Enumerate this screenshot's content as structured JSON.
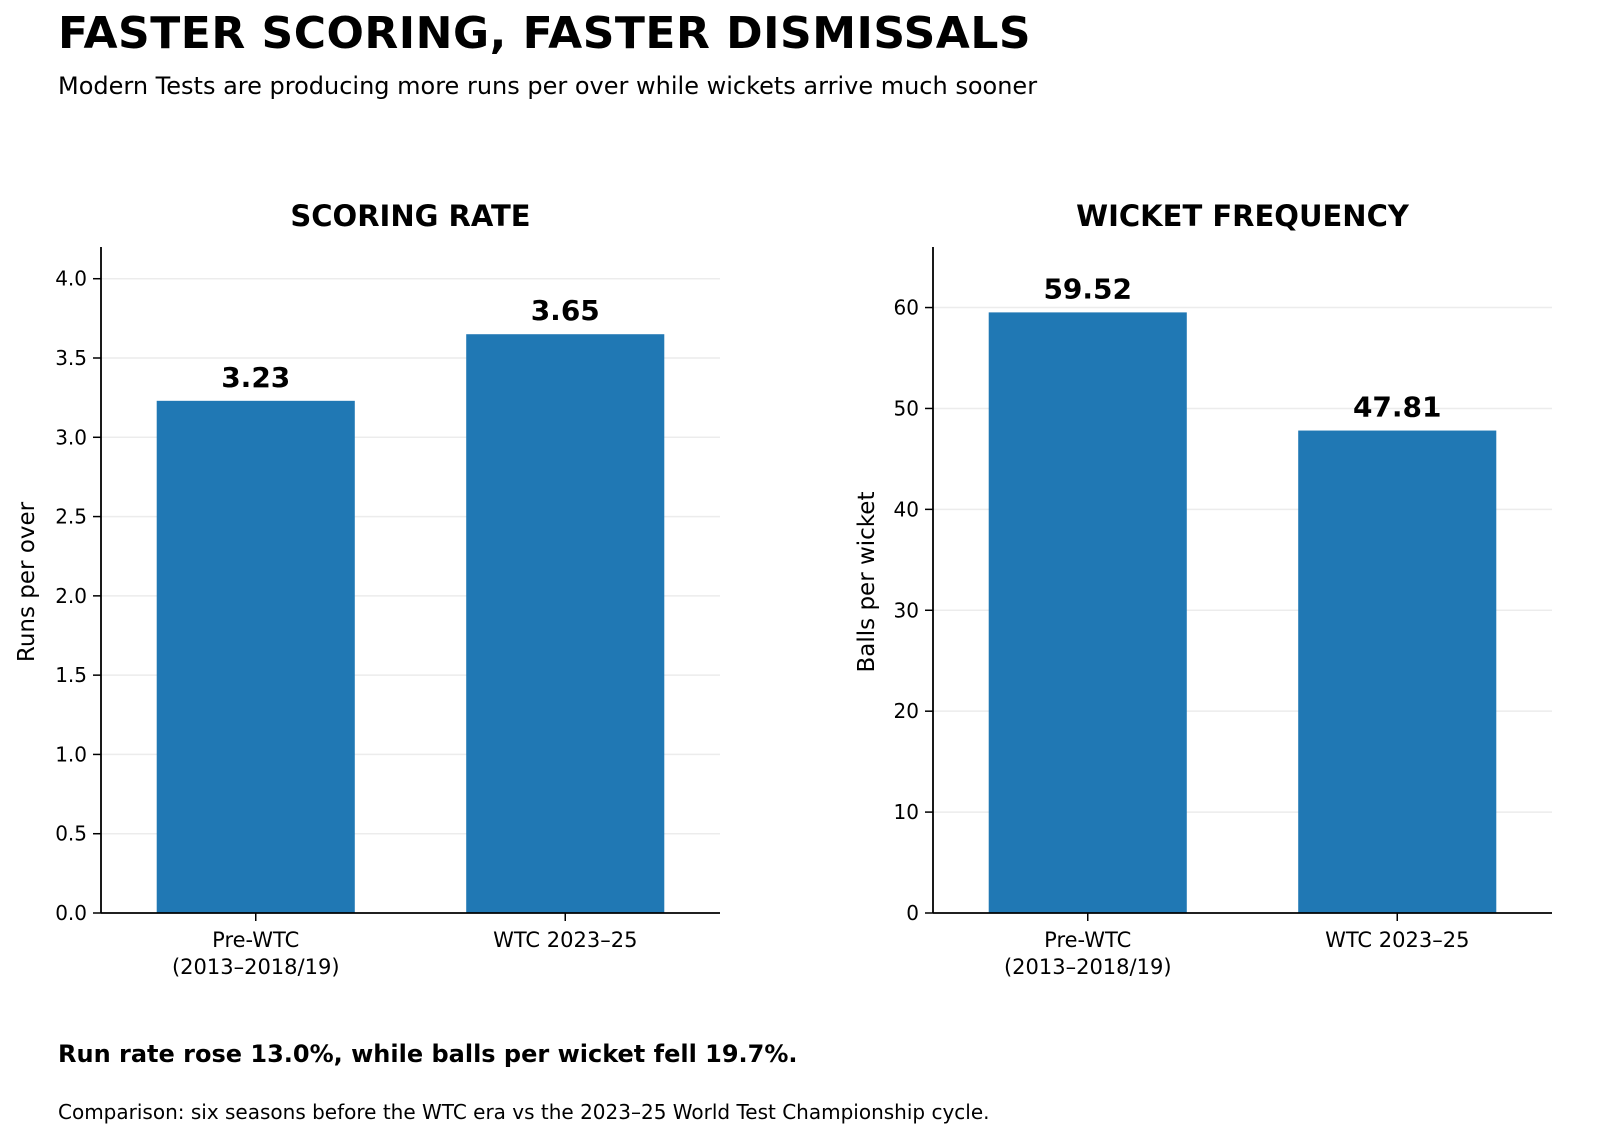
{
  "header": {
    "title": "FASTER SCORING, FASTER DISMISSALS",
    "subtitle": "Modern Tests are producing more runs per over while wickets arrive much sooner"
  },
  "footer": {
    "finding": "Run rate rose 13.0%, while balls per wicket fell 19.7%.",
    "note": "Comparison: six seasons before the WTC era vs the 2023–25 World Test Championship cycle."
  },
  "colors": {
    "bar": "#2078b4",
    "grid": "#ececec",
    "axis": "#000000"
  },
  "chart_data": [
    {
      "type": "bar",
      "title": "SCORING RATE",
      "ylabel": "Runs per over",
      "xlabel": "",
      "categories": [
        "Pre-WTC\n(2013–2018/19)",
        "WTC 2023–25"
      ],
      "values": [
        3.23,
        3.65
      ],
      "data_labels": [
        "3.23",
        "3.65"
      ],
      "ylim": [
        0,
        4.2
      ],
      "yticks": [
        0,
        0.5,
        1,
        1.5,
        2,
        2.5,
        3,
        3.5,
        4
      ],
      "ytick_labels": [
        "0.0",
        "0.5",
        "1.0",
        "1.5",
        "2.0",
        "2.5",
        "3.0",
        "3.5",
        "4.0"
      ],
      "grid": true,
      "legend": "none"
    },
    {
      "type": "bar",
      "title": "WICKET FREQUENCY",
      "ylabel": "Balls per wicket",
      "xlabel": "",
      "categories": [
        "Pre-WTC\n(2013–2018/19)",
        "WTC 2023–25"
      ],
      "values": [
        59.52,
        47.81
      ],
      "data_labels": [
        "59.52",
        "47.81"
      ],
      "ylim": [
        0,
        66
      ],
      "yticks": [
        0,
        10,
        20,
        30,
        40,
        50,
        60
      ],
      "ytick_labels": [
        "0",
        "10",
        "20",
        "30",
        "40",
        "50",
        "60"
      ],
      "grid": true,
      "legend": "none"
    }
  ]
}
